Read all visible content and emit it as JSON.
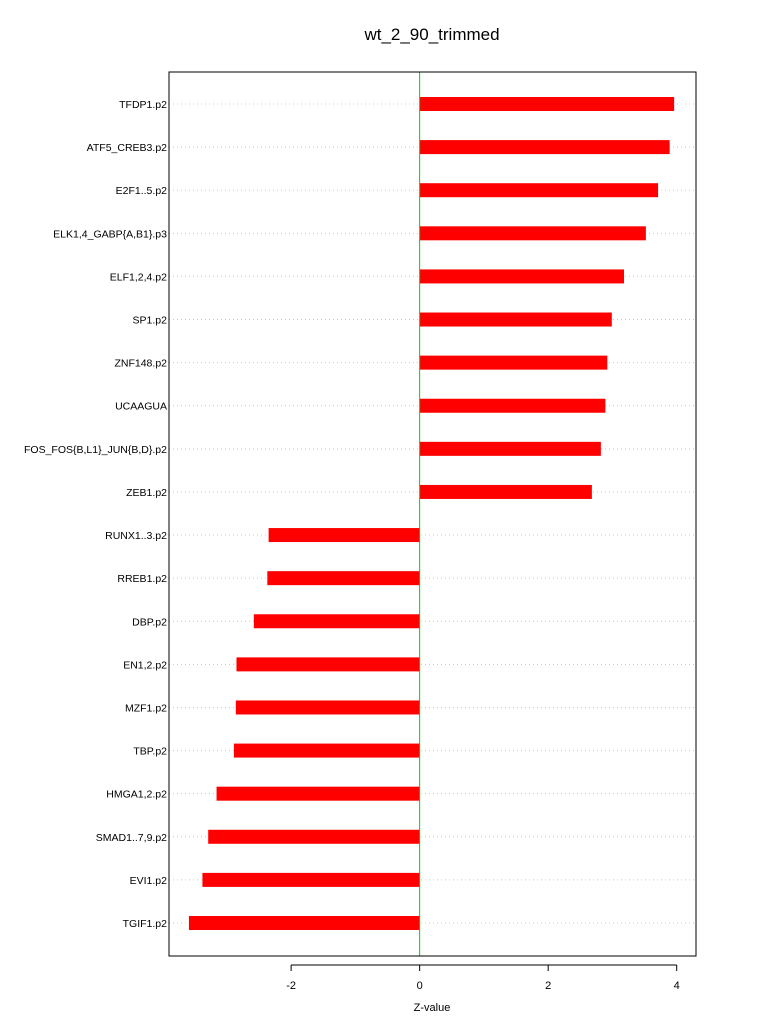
{
  "chart_data": {
    "type": "bar",
    "orientation": "horizontal",
    "title": "wt_2_90_trimmed",
    "xlabel": "Z-value",
    "ylabel": "",
    "xlim": [
      -3.9,
      4.3
    ],
    "x_ticks": [
      -2,
      0,
      2,
      4
    ],
    "x_tick_labels": [
      "-2",
      "0",
      "2",
      "4"
    ],
    "grid": "horizontal dotted lines at each category",
    "zero_line": true,
    "categories": [
      "TFDP1.p2",
      "ATF5_CREB3.p2",
      "E2F1..5.p2",
      "ELK1,4_GABP{A,B1}.p3",
      "ELF1,2,4.p2",
      "SP1.p2",
      "ZNF148.p2",
      "UCAAGUA",
      "FOS_FOS{B,L1}_JUN{B,D}.p2",
      "ZEB1.p2",
      "RUNX1..3.p2",
      "RREB1.p2",
      "DBP.p2",
      "EN1,2.p2",
      "MZF1.p2",
      "TBP.p2",
      "HMGA1,2.p2",
      "SMAD1..7,9.p2",
      "EVI1.p2",
      "TGIF1.p2"
    ],
    "values": [
      3.96,
      3.89,
      3.71,
      3.52,
      3.18,
      2.99,
      2.92,
      2.89,
      2.82,
      2.68,
      -2.35,
      -2.37,
      -2.58,
      -2.85,
      -2.86,
      -2.89,
      -3.16,
      -3.29,
      -3.38,
      -3.59
    ]
  },
  "colors": {
    "bar": "#ff0000",
    "zero_line": "#00cc00",
    "grid": "#c8c8c8",
    "axis": "#000000"
  }
}
